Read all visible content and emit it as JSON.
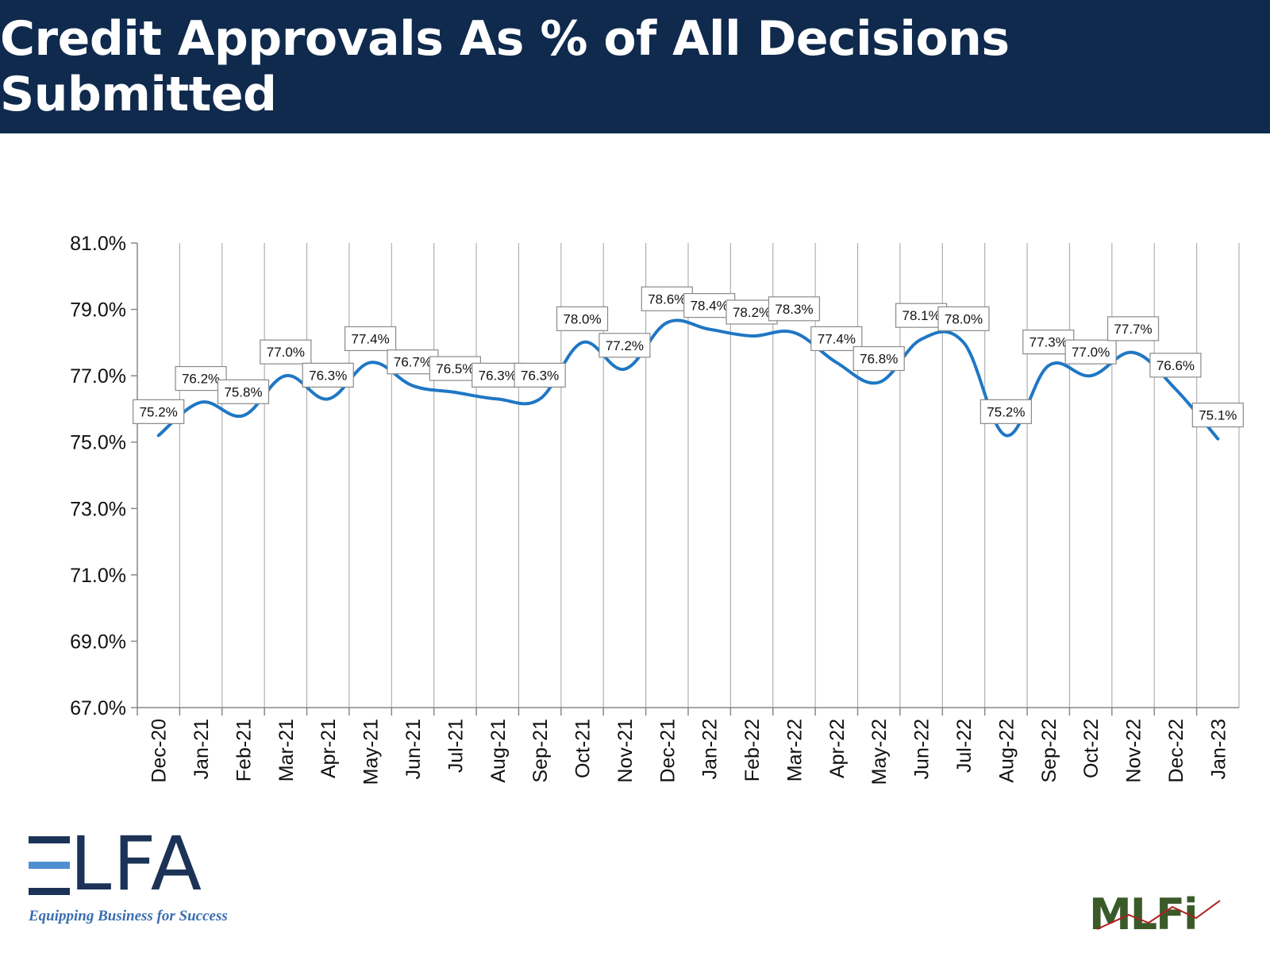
{
  "header": {
    "title": "Credit Approvals As % of All Decisions Submitted"
  },
  "chart_data": {
    "type": "line",
    "title": "Credit Approvals As % of All Decisions Submitted",
    "xlabel": "",
    "ylabel": "",
    "categories": [
      "Dec-20",
      "Jan-21",
      "Feb-21",
      "Mar-21",
      "Apr-21",
      "May-21",
      "Jun-21",
      "Jul-21",
      "Aug-21",
      "Sep-21",
      "Oct-21",
      "Nov-21",
      "Dec-21",
      "Jan-22",
      "Feb-22",
      "Mar-22",
      "Apr-22",
      "May-22",
      "Jun-22",
      "Jul-22",
      "Aug-22",
      "Sep-22",
      "Oct-22",
      "Nov-22",
      "Dec-22",
      "Jan-23"
    ],
    "values": [
      75.2,
      76.2,
      75.8,
      77.0,
      76.3,
      77.4,
      76.7,
      76.5,
      76.3,
      76.3,
      78.0,
      77.2,
      78.6,
      78.4,
      78.2,
      78.3,
      77.4,
      76.8,
      78.1,
      78.0,
      75.2,
      77.3,
      77.0,
      77.7,
      76.6,
      75.1
    ],
    "data_labels": [
      "75.2%",
      "76.2%",
      "75.8%",
      "77.0%",
      "76.3%",
      "77.4%",
      "76.7%",
      "76.5%",
      "76.3%",
      "76.3%",
      "78.0%",
      "77.2%",
      "78.6%",
      "78.4%",
      "78.2%",
      "78.3%",
      "77.4%",
      "76.8%",
      "78.1%",
      "78.0%",
      "75.2%",
      "77.3%",
      "77.0%",
      "77.7%",
      "76.6%",
      "75.1%"
    ],
    "ylim": [
      67.0,
      81.0
    ],
    "y_ticks": [
      "67.0%",
      "69.0%",
      "71.0%",
      "73.0%",
      "75.0%",
      "77.0%",
      "79.0%",
      "81.0%"
    ],
    "y_tick_values": [
      67,
      69,
      71,
      73,
      75,
      77,
      79,
      81
    ],
    "grid": "vertical",
    "legend": "none",
    "line_color": "#1f77c4",
    "smooth": true
  },
  "logos": {
    "elfa": {
      "text": "ELFA",
      "tagline": "Equipping Business for Success",
      "color": "#1c3357",
      "accent": "#4f8fd1"
    },
    "mlfi": {
      "text": "MLFI",
      "color": "#3b5a2a"
    }
  }
}
